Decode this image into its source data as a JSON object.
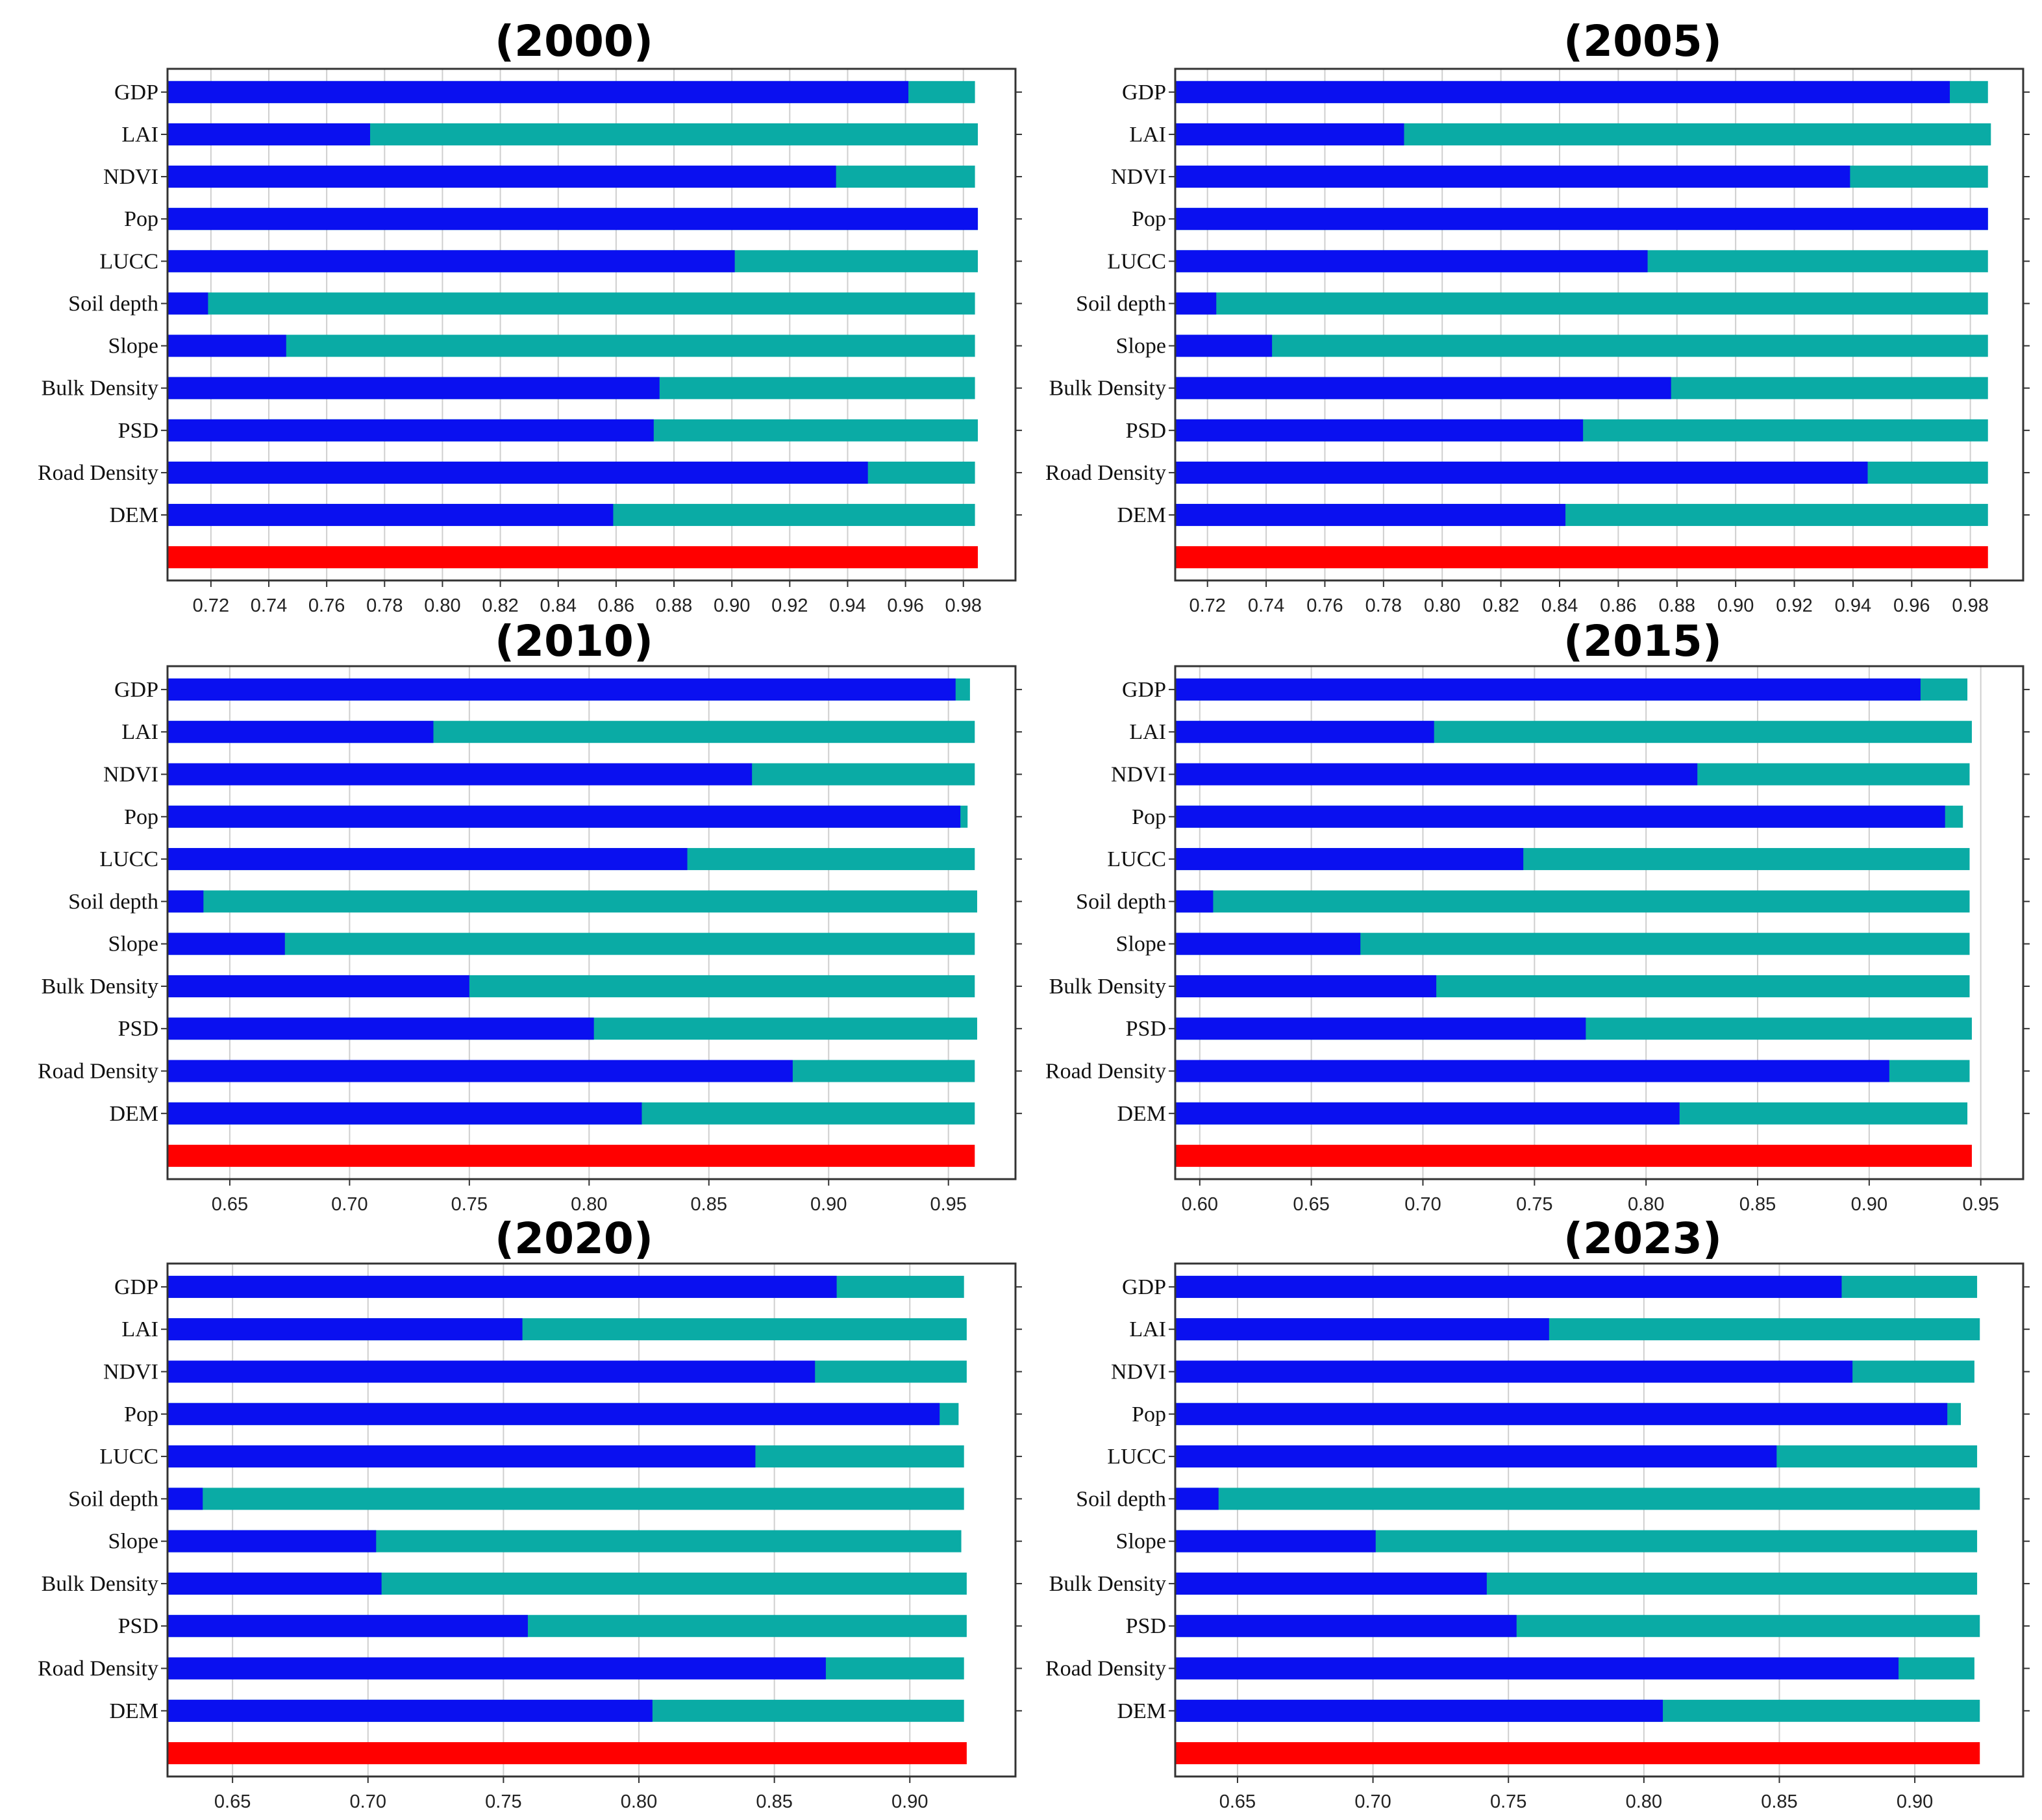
{
  "colors": {
    "importance_bar": "#0a10f0",
    "background_bar": "#0aaba5",
    "reference_bar": "#ff0000"
  },
  "chart_data": [
    {
      "type": "bar",
      "orientation": "horizontal",
      "title": "(2000)",
      "categories": [
        "GDP",
        "LAI",
        "NDVI",
        "Pop",
        "LUCC",
        "Soil depth",
        "Slope",
        "Bulk Density",
        "PSD",
        "Road Density",
        "DEM"
      ],
      "values": [
        0.961,
        0.775,
        0.936,
        0.985,
        0.901,
        0.719,
        0.746,
        0.875,
        0.873,
        0.947,
        0.859
      ],
      "totals": [
        0.984,
        0.985,
        0.984,
        0.985,
        0.985,
        0.984,
        0.984,
        0.984,
        0.985,
        0.984,
        0.984
      ],
      "reference": 0.985,
      "xlim": [
        0.705,
        0.998
      ],
      "xticks": [
        "0.72",
        "0.74",
        "0.76",
        "0.78",
        "0.80",
        "0.82",
        "0.84",
        "0.86",
        "0.88",
        "0.90",
        "0.92",
        "0.94",
        "0.96",
        "0.98"
      ],
      "grid": true,
      "legend": "none"
    },
    {
      "type": "bar",
      "orientation": "horizontal",
      "title": "(2005)",
      "categories": [
        "GDP",
        "LAI",
        "NDVI",
        "Pop",
        "LUCC",
        "Soil depth",
        "Slope",
        "Bulk Density",
        "PSD",
        "Road Density",
        "DEM"
      ],
      "values": [
        0.973,
        0.787,
        0.939,
        0.986,
        0.87,
        0.723,
        0.742,
        0.878,
        0.848,
        0.945,
        0.842
      ],
      "totals": [
        0.986,
        0.987,
        0.986,
        0.986,
        0.986,
        0.986,
        0.986,
        0.986,
        0.986,
        0.986,
        0.986
      ],
      "reference": 0.986,
      "xlim": [
        0.709,
        0.998
      ],
      "xticks": [
        "0.72",
        "0.74",
        "0.76",
        "0.78",
        "0.80",
        "0.82",
        "0.84",
        "0.86",
        "0.88",
        "0.90",
        "0.92",
        "0.94",
        "0.96",
        "0.98"
      ],
      "grid": true,
      "legend": "none"
    },
    {
      "type": "bar",
      "orientation": "horizontal",
      "title": "(2010)",
      "categories": [
        "GDP",
        "LAI",
        "NDVI",
        "Pop",
        "LUCC",
        "Soil depth",
        "Slope",
        "Bulk Density",
        "PSD",
        "Road Density",
        "DEM"
      ],
      "values": [
        0.953,
        0.735,
        0.868,
        0.955,
        0.841,
        0.639,
        0.673,
        0.75,
        0.802,
        0.885,
        0.822
      ],
      "totals": [
        0.959,
        0.961,
        0.961,
        0.958,
        0.961,
        0.962,
        0.961,
        0.961,
        0.962,
        0.961,
        0.961
      ],
      "reference": 0.961,
      "xlim": [
        0.624,
        0.978
      ],
      "xticks": [
        "0.65",
        "0.70",
        "0.75",
        "0.80",
        "0.85",
        "0.90",
        "0.95"
      ],
      "grid": true,
      "legend": "none"
    },
    {
      "type": "bar",
      "orientation": "horizontal",
      "title": "(2015)",
      "categories": [
        "GDP",
        "LAI",
        "NDVI",
        "Pop",
        "LUCC",
        "Soil depth",
        "Slope",
        "Bulk Density",
        "PSD",
        "Road Density",
        "DEM"
      ],
      "values": [
        0.923,
        0.705,
        0.823,
        0.934,
        0.745,
        0.606,
        0.672,
        0.706,
        0.773,
        0.909,
        0.815
      ],
      "totals": [
        0.944,
        0.946,
        0.945,
        0.942,
        0.945,
        0.945,
        0.945,
        0.945,
        0.946,
        0.945,
        0.944
      ],
      "reference": 0.946,
      "xlim": [
        0.589,
        0.969
      ],
      "xticks": [
        "0.60",
        "0.65",
        "0.70",
        "0.75",
        "0.80",
        "0.85",
        "0.90",
        "0.95"
      ],
      "grid": true,
      "legend": "none"
    },
    {
      "type": "bar",
      "orientation": "horizontal",
      "title": "(2020)",
      "categories": [
        "GDP",
        "LAI",
        "NDVI",
        "Pop",
        "LUCC",
        "Soil depth",
        "Slope",
        "Bulk Density",
        "PSD",
        "Road Density",
        "DEM"
      ],
      "values": [
        0.873,
        0.757,
        0.865,
        0.911,
        0.843,
        0.639,
        0.703,
        0.705,
        0.759,
        0.869,
        0.805
      ],
      "totals": [
        0.92,
        0.921,
        0.921,
        0.918,
        0.92,
        0.92,
        0.919,
        0.921,
        0.921,
        0.92,
        0.92
      ],
      "reference": 0.921,
      "xlim": [
        0.626,
        0.939
      ],
      "xticks": [
        "0.65",
        "0.70",
        "0.75",
        "0.80",
        "0.85",
        "0.90"
      ],
      "grid": true,
      "legend": "none"
    },
    {
      "type": "bar",
      "orientation": "horizontal",
      "title": "(2023)",
      "categories": [
        "GDP",
        "LAI",
        "NDVI",
        "Pop",
        "LUCC",
        "Soil depth",
        "Slope",
        "Bulk Density",
        "PSD",
        "Road Density",
        "DEM"
      ],
      "values": [
        0.873,
        0.765,
        0.877,
        0.912,
        0.849,
        0.643,
        0.701,
        0.742,
        0.753,
        0.894,
        0.807
      ],
      "totals": [
        0.923,
        0.924,
        0.922,
        0.917,
        0.923,
        0.924,
        0.923,
        0.923,
        0.924,
        0.922,
        0.924
      ],
      "reference": 0.924,
      "xlim": [
        0.627,
        0.94
      ],
      "xticks": [
        "0.65",
        "0.70",
        "0.75",
        "0.80",
        "0.85",
        "0.90"
      ],
      "grid": true,
      "legend": "none"
    }
  ]
}
